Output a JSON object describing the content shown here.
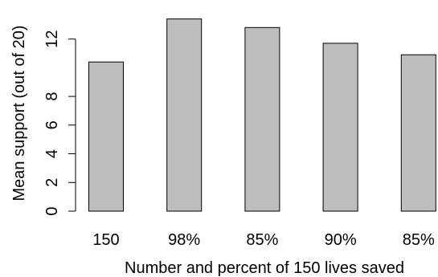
{
  "chart_data": {
    "type": "bar",
    "categories": [
      "150",
      "98%",
      "85%",
      "90%",
      "85%"
    ],
    "values": [
      10.4,
      13.4,
      12.8,
      11.7,
      10.9
    ],
    "xlabel": "Number and percent of 150 lives saved",
    "ylabel": "Mean support (out of 20)",
    "ylim": [
      0,
      13.6
    ],
    "yticks": [
      0,
      2,
      4,
      6,
      8,
      12
    ],
    "bar_color": "#bebebe",
    "bar_stroke": "#000000",
    "grid": false,
    "legend": "none"
  }
}
